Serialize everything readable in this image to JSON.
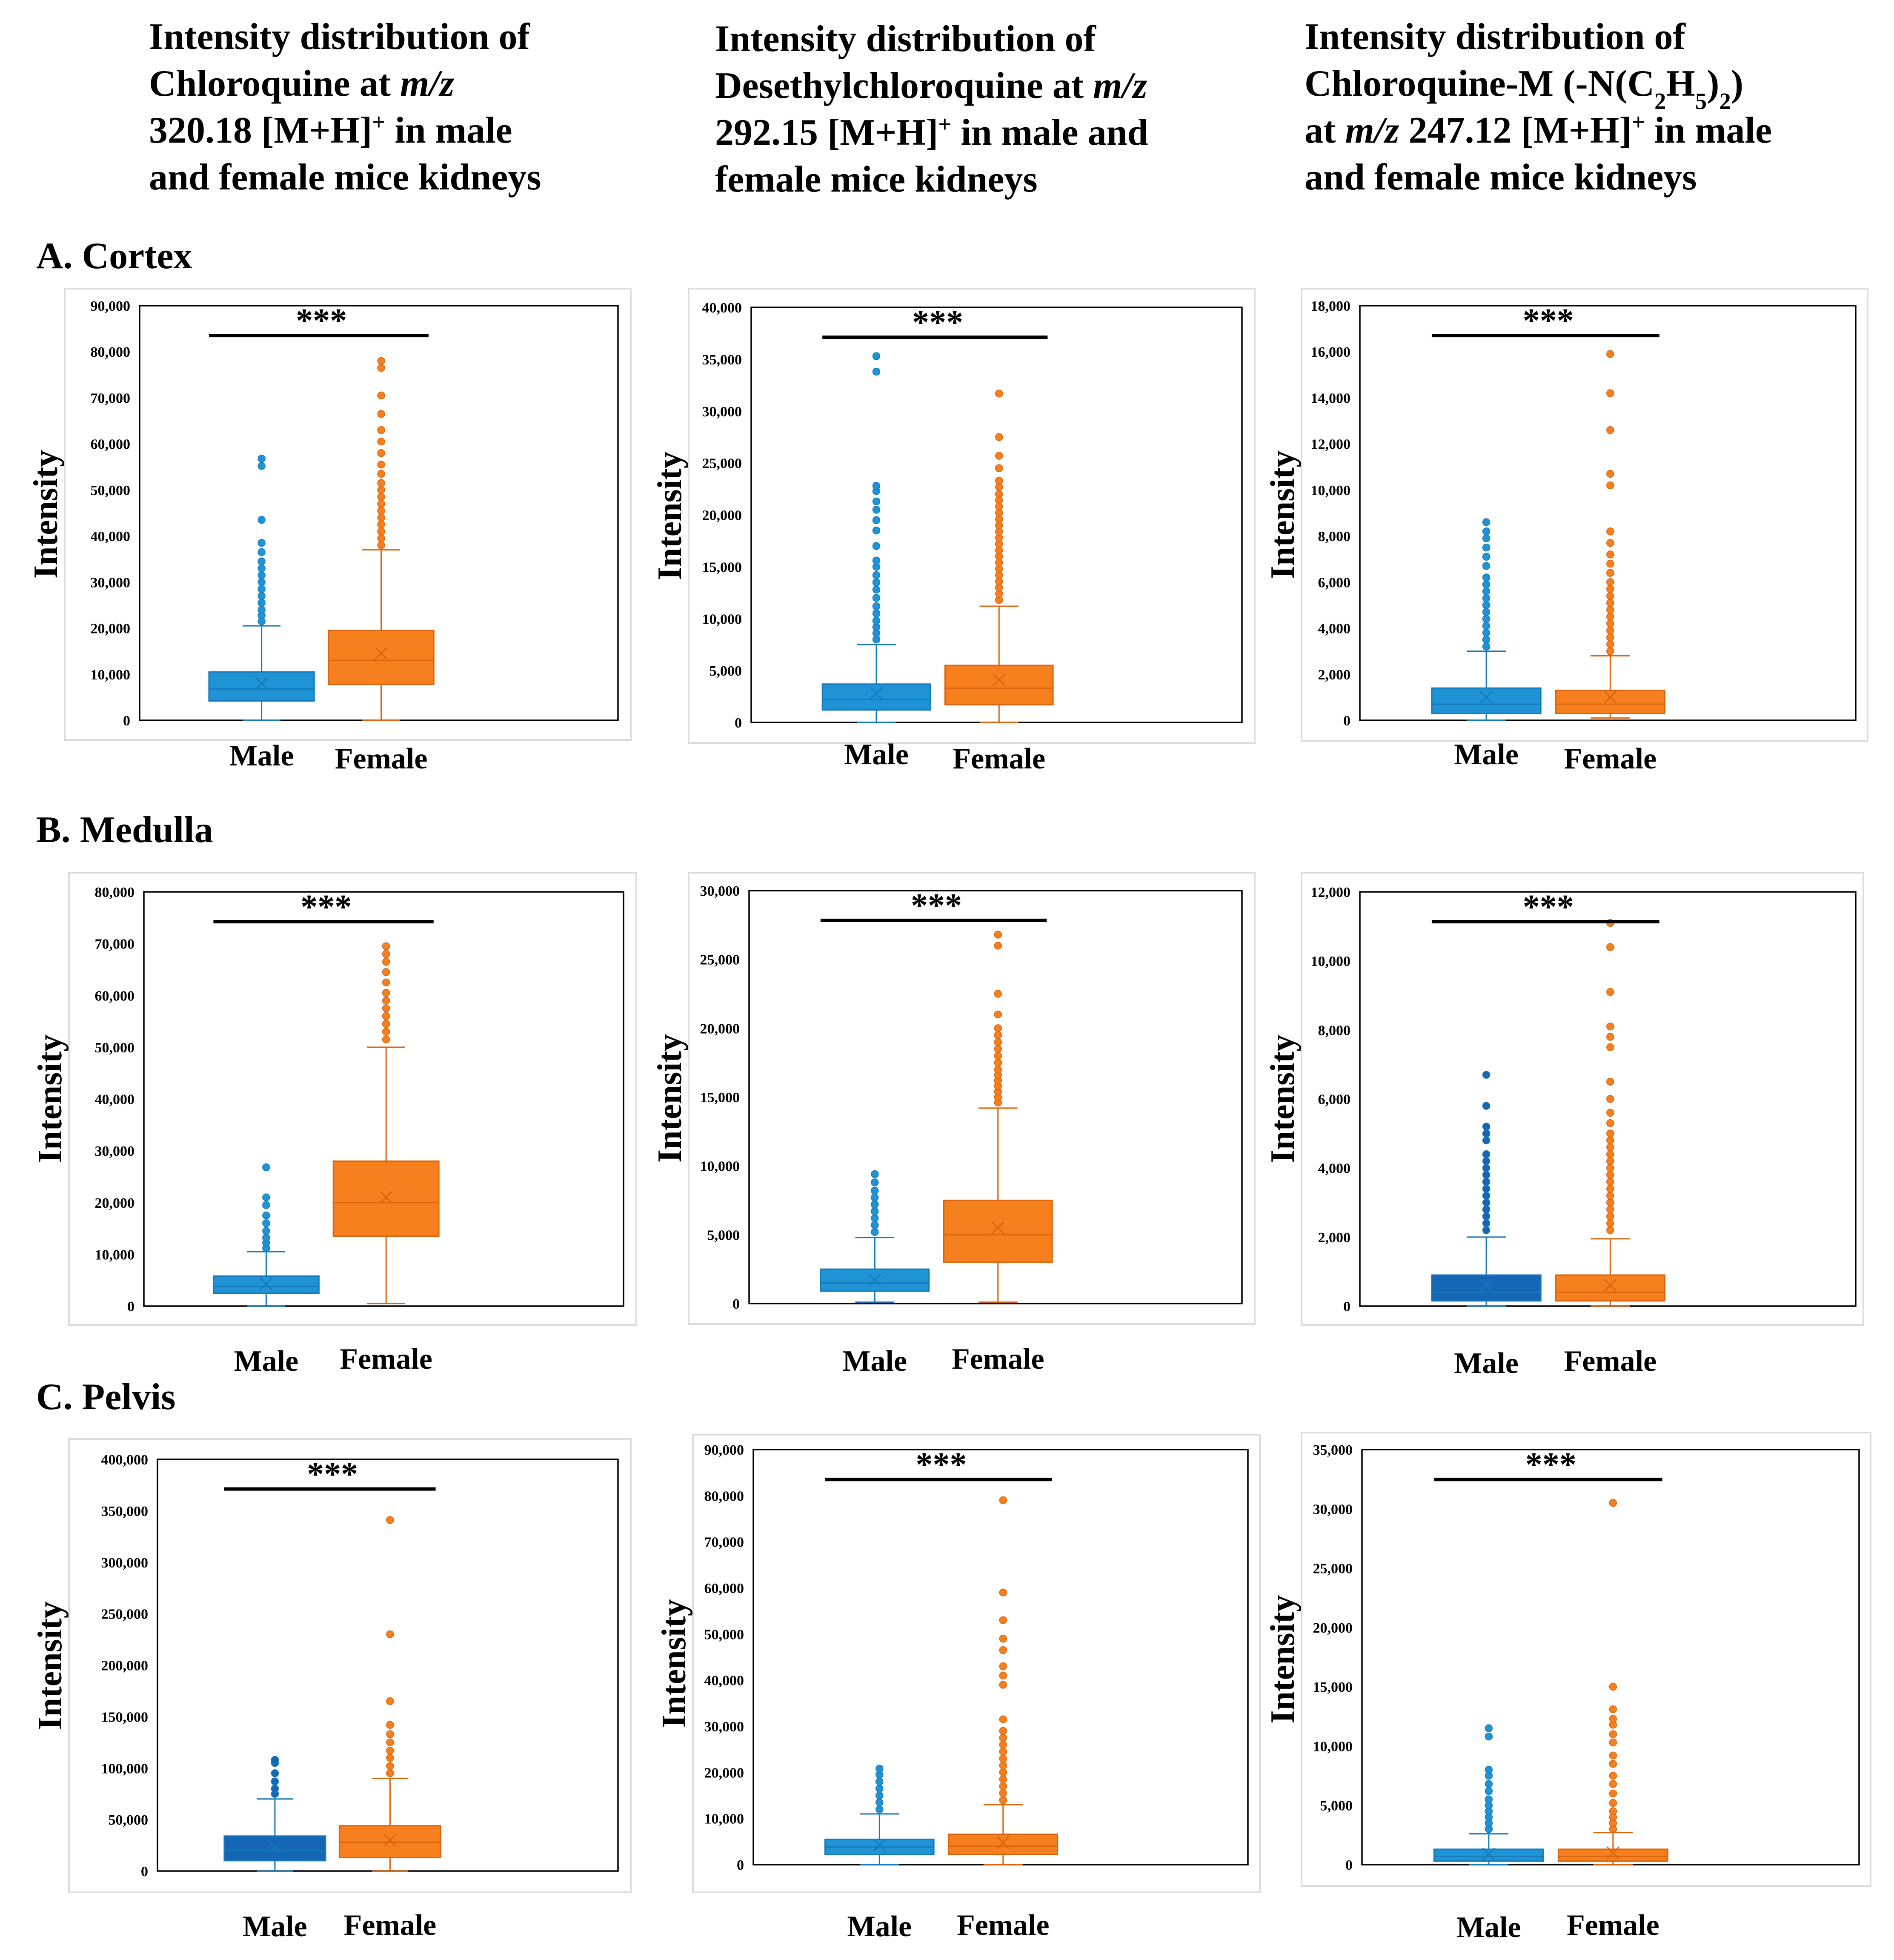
{
  "colors": {
    "male": "#1f93d6",
    "male_dark": "#1666b8",
    "male_stroke": "#147ab8",
    "female": "#f77f1e",
    "female_stroke": "#d9640c",
    "axis": "#000000",
    "panel_border": "#dcdcdc"
  },
  "columns": [
    {
      "title_lines": [
        [
          {
            "t": "Intensity distribution of"
          }
        ],
        [
          {
            "t": "Chloroquine at "
          },
          {
            "t": "m/z",
            "i": true
          }
        ],
        [
          {
            "t": "320.18 [M+H]"
          },
          {
            "t": "+",
            "sup": true
          },
          {
            "t": " in male"
          }
        ],
        [
          {
            "t": "and female mice kidneys"
          }
        ]
      ]
    },
    {
      "title_lines": [
        [
          {
            "t": "Intensity distribution of"
          }
        ],
        [
          {
            "t": "Desethylchloroquine at "
          },
          {
            "t": "m/z",
            "i": true
          }
        ],
        [
          {
            "t": "292.15  [M+H]"
          },
          {
            "t": "+",
            "sup": true
          },
          {
            "t": " in male and"
          }
        ],
        [
          {
            "t": "female mice kidneys"
          }
        ]
      ]
    },
    {
      "title_lines": [
        [
          {
            "t": "Intensity distribution of"
          }
        ],
        [
          {
            "t": "Chloroquine-M (-N(C"
          },
          {
            "t": "2",
            "sub": true
          },
          {
            "t": "H"
          },
          {
            "t": "5",
            "sub": true
          },
          {
            "t": ")"
          },
          {
            "t": "2",
            "sub": true
          },
          {
            "t": ")"
          }
        ],
        [
          {
            "t": "at "
          },
          {
            "t": "m/z",
            "i": true
          },
          {
            "t": " 247.12 [M+H]"
          },
          {
            "t": "+",
            "sup": true
          },
          {
            "t": " in male"
          }
        ],
        [
          {
            "t": "and female mice kidneys"
          }
        ]
      ]
    }
  ],
  "rows": [
    {
      "label": "A. Cortex"
    },
    {
      "label": "B. Medulla"
    },
    {
      "label": "C. Pelvis"
    }
  ],
  "y_axis_label": "Intensity",
  "significance_label": "***",
  "categories": [
    "Male",
    "Female"
  ],
  "chart_data": [
    {
      "type": "box",
      "row": 0,
      "col": 0,
      "title": "Chloroquine m/z 320.18 — Cortex",
      "ylabel": "Intensity",
      "ylim": [
        0,
        90000
      ],
      "ticks": [
        "0",
        "10,000",
        "20,000",
        "30,000",
        "40,000",
        "50,000",
        "60,000",
        "70,000",
        "80,000",
        "90,000"
      ],
      "categories": [
        "Male",
        "Female"
      ],
      "series": [
        {
          "name": "Male",
          "min": 0,
          "q1": 4200,
          "median": 6800,
          "q3": 10500,
          "max": 20500,
          "mean": 8000,
          "outliers": [
            21500,
            22800,
            24000,
            25500,
            27000,
            28500,
            30000,
            31500,
            33000,
            34500,
            36500,
            38500,
            43500,
            55200,
            56800
          ]
        },
        {
          "name": "Female",
          "min": 0,
          "q1": 7800,
          "median": 13000,
          "q3": 19500,
          "max": 37000,
          "mean": 14500,
          "outliers": [
            38000,
            39500,
            41000,
            42500,
            44000,
            45500,
            47000,
            48500,
            50000,
            51500,
            53500,
            55500,
            58000,
            60500,
            63000,
            66500,
            70500,
            76500,
            78000
          ]
        }
      ]
    },
    {
      "type": "box",
      "row": 0,
      "col": 1,
      "title": "Desethylchloroquine m/z 292.15 — Cortex",
      "ylabel": "Intensity",
      "ylim": [
        0,
        40000
      ],
      "ticks": [
        "0",
        "5,000",
        "10,000",
        "15,000",
        "20,000",
        "25,000",
        "30,000",
        "35,000",
        "40,000"
      ],
      "categories": [
        "Male",
        "Female"
      ],
      "series": [
        {
          "name": "Male",
          "min": 0,
          "q1": 1200,
          "median": 2200,
          "q3": 3700,
          "max": 7500,
          "mean": 2800,
          "outliers": [
            8000,
            8600,
            9200,
            9800,
            10500,
            11200,
            12000,
            12800,
            13500,
            14200,
            15000,
            15600,
            17000,
            18500,
            19500,
            20500,
            21300,
            22300,
            22800,
            33800,
            35300
          ]
        },
        {
          "name": "Female",
          "min": 0,
          "q1": 1700,
          "median": 3300,
          "q3": 5500,
          "max": 11200,
          "mean": 4100,
          "outliers": [
            11800,
            12400,
            13000,
            13600,
            14200,
            14800,
            15400,
            16000,
            16600,
            17200,
            17800,
            18400,
            19000,
            19600,
            20200,
            20800,
            21400,
            22000,
            22700,
            23300,
            24500,
            25700,
            27500,
            31700
          ]
        }
      ]
    },
    {
      "type": "box",
      "row": 0,
      "col": 2,
      "title": "Chloroquine-M m/z 247.12 — Cortex",
      "ylabel": "Intensity",
      "ylim": [
        0,
        18000
      ],
      "ticks": [
        "0",
        "2,000",
        "4,000",
        "6,000",
        "8,000",
        "10,000",
        "12,000",
        "14,000",
        "16,000",
        "18,000"
      ],
      "categories": [
        "Male",
        "Female"
      ],
      "series": [
        {
          "name": "Male",
          "min": 0,
          "q1": 300,
          "median": 700,
          "q3": 1400,
          "max": 3000,
          "mean": 1000,
          "outliers": [
            3200,
            3500,
            3800,
            4100,
            4400,
            4700,
            5000,
            5300,
            5600,
            5900,
            6200,
            6700,
            7100,
            7500,
            7900,
            8200,
            8600
          ]
        },
        {
          "name": "Female",
          "min": 100,
          "q1": 300,
          "median": 700,
          "q3": 1300,
          "max": 2800,
          "mean": 1000,
          "outliers": [
            3000,
            3300,
            3600,
            3900,
            4200,
            4500,
            4800,
            5100,
            5400,
            5700,
            6000,
            6400,
            6800,
            7200,
            7700,
            8200,
            10200,
            10700,
            12600,
            14200,
            15900
          ]
        }
      ]
    },
    {
      "type": "box",
      "row": 1,
      "col": 0,
      "title": "Chloroquine m/z 320.18 — Medulla",
      "ylabel": "Intensity",
      "ylim": [
        0,
        80000
      ],
      "ticks": [
        "0",
        "10,000",
        "20,000",
        "30,000",
        "40,000",
        "50,000",
        "60,000",
        "70,000",
        "80,000"
      ],
      "categories": [
        "Male",
        "Female"
      ],
      "series": [
        {
          "name": "Male",
          "min": 0,
          "q1": 2500,
          "median": 3800,
          "q3": 5800,
          "max": 10500,
          "mean": 4300,
          "outliers": [
            11200,
            12200,
            13200,
            14500,
            16000,
            17500,
            19500,
            21000,
            26800
          ]
        },
        {
          "name": "Female",
          "min": 500,
          "q1": 13500,
          "median": 20000,
          "q3": 28000,
          "max": 50000,
          "mean": 21000,
          "outliers": [
            51500,
            53000,
            54500,
            56000,
            57500,
            59000,
            60500,
            62500,
            64500,
            66500,
            68000,
            69500
          ]
        }
      ]
    },
    {
      "type": "box",
      "row": 1,
      "col": 1,
      "title": "Desethylchloroquine m/z 292.15 — Medulla",
      "ylabel": "Intensity",
      "ylim": [
        0,
        30000
      ],
      "ticks": [
        "0",
        "5,000",
        "10,000",
        "15,000",
        "20,000",
        "25,000",
        "30,000"
      ],
      "categories": [
        "Male",
        "Female"
      ],
      "series": [
        {
          "name": "Male",
          "min": 100,
          "q1": 900,
          "median": 1500,
          "q3": 2500,
          "max": 4800,
          "mean": 1700,
          "outliers": [
            5200,
            5700,
            6200,
            6700,
            7200,
            7700,
            8200,
            8800,
            9400
          ]
        },
        {
          "name": "Female",
          "min": 100,
          "q1": 3000,
          "median": 5000,
          "q3": 7500,
          "max": 14200,
          "mean": 5500,
          "outliers": [
            14600,
            15000,
            15400,
            15800,
            16200,
            16600,
            17000,
            17500,
            18000,
            18500,
            19000,
            19500,
            20000,
            21000,
            22500,
            26000,
            26800
          ]
        }
      ]
    },
    {
      "type": "box",
      "row": 1,
      "col": 2,
      "title": "Chloroquine-M m/z 247.12 — Medulla",
      "ylabel": "Intensity",
      "ylim": [
        0,
        12000
      ],
      "ticks": [
        "0",
        "2,000",
        "4,000",
        "6,000",
        "8,000",
        "10,000",
        "12,000"
      ],
      "categories": [
        "Male",
        "Female"
      ],
      "series": [
        {
          "name": "Male",
          "min": 0,
          "q1": 150,
          "median": 400,
          "q3": 900,
          "max": 2000,
          "mean": 600,
          "outliers": [
            2200,
            2400,
            2600,
            2800,
            3000,
            3200,
            3400,
            3600,
            3800,
            4000,
            4200,
            4400,
            4800,
            5000,
            5200,
            5800,
            6700
          ]
        },
        {
          "name": "Female",
          "min": 0,
          "q1": 150,
          "median": 400,
          "q3": 900,
          "max": 1950,
          "mean": 600,
          "outliers": [
            2200,
            2400,
            2600,
            2800,
            3000,
            3200,
            3400,
            3600,
            3800,
            4000,
            4200,
            4400,
            4600,
            4800,
            5000,
            5300,
            5600,
            6000,
            6500,
            7500,
            7800,
            8100,
            9100,
            10400,
            11100
          ]
        }
      ]
    },
    {
      "type": "box",
      "row": 2,
      "col": 0,
      "title": "Chloroquine m/z 320.18 — Pelvis",
      "ylabel": "Intensity",
      "ylim": [
        0,
        400000
      ],
      "ticks": [
        "0",
        "50,000",
        "100,000",
        "150,000",
        "200,000",
        "250,000",
        "300,000",
        "350,000",
        "400,000"
      ],
      "categories": [
        "Male",
        "Female"
      ],
      "series": [
        {
          "name": "Male",
          "min": 0,
          "q1": 10000,
          "median": 20000,
          "q3": 34000,
          "max": 70000,
          "mean": 23000,
          "outliers": [
            75000,
            80000,
            87000,
            95000,
            105000,
            108000
          ]
        },
        {
          "name": "Female",
          "min": 0,
          "q1": 13000,
          "median": 28000,
          "q3": 44000,
          "max": 90000,
          "mean": 30000,
          "outliers": [
            95000,
            102000,
            110000,
            117000,
            125000,
            133000,
            142000,
            165000,
            230000,
            341000
          ]
        }
      ]
    },
    {
      "type": "box",
      "row": 2,
      "col": 1,
      "title": "Desethylchloroquine m/z 292.15 — Pelvis",
      "ylabel": "Intensity",
      "ylim": [
        0,
        90000
      ],
      "ticks": [
        "0",
        "10,000",
        "20,000",
        "30,000",
        "40,000",
        "50,000",
        "60,000",
        "70,000",
        "80,000",
        "90,000"
      ],
      "categories": [
        "Male",
        "Female"
      ],
      "series": [
        {
          "name": "Male",
          "min": 0,
          "q1": 2200,
          "median": 3800,
          "q3": 5500,
          "max": 11000,
          "mean": 4200,
          "outliers": [
            12000,
            13500,
            15000,
            16500,
            18000,
            19500,
            20800
          ]
        },
        {
          "name": "Female",
          "min": 0,
          "q1": 2200,
          "median": 4000,
          "q3": 6600,
          "max": 13000,
          "mean": 4800,
          "outliers": [
            14000,
            15500,
            17000,
            18500,
            20000,
            21500,
            23000,
            24500,
            26000,
            27500,
            29000,
            31500,
            39000,
            41000,
            43000,
            46500,
            49000,
            53000,
            59000,
            79000
          ]
        }
      ]
    },
    {
      "type": "box",
      "row": 2,
      "col": 2,
      "title": "Chloroquine-M m/z 247.12 — Pelvis",
      "ylabel": "Intensity",
      "ylim": [
        0,
        35000
      ],
      "ticks": [
        "0",
        "5,000",
        "10,000",
        "15,000",
        "20,000",
        "25,000",
        "30,000",
        "35,000"
      ],
      "categories": [
        "Male",
        "Female"
      ],
      "series": [
        {
          "name": "Male",
          "min": 0,
          "q1": 300,
          "median": 700,
          "q3": 1300,
          "max": 2600,
          "mean": 900,
          "outliers": [
            3000,
            3500,
            4000,
            4500,
            5000,
            5500,
            6200,
            6800,
            7500,
            8000,
            10800,
            11500
          ]
        },
        {
          "name": "Female",
          "min": 0,
          "q1": 300,
          "median": 700,
          "q3": 1300,
          "max": 2700,
          "mean": 1000,
          "outliers": [
            3000,
            3500,
            4000,
            4500,
            5200,
            6000,
            6800,
            7500,
            8500,
            9200,
            10300,
            11000,
            11800,
            12300,
            13100,
            15000,
            30500
          ]
        }
      ]
    }
  ]
}
